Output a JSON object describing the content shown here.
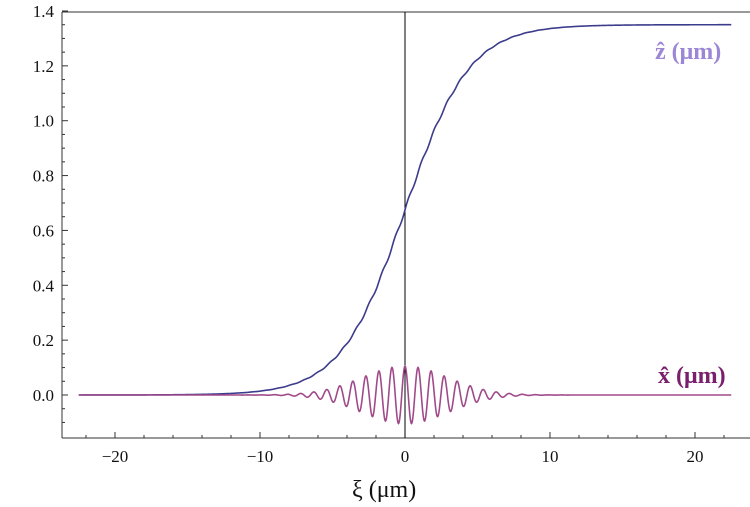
{
  "chart_data": {
    "type": "line",
    "xlabel": "ξ (μm)",
    "ylabel": "",
    "xlim": [
      -22.5,
      22.5
    ],
    "ylim": [
      -0.13,
      1.4
    ],
    "x_ticks": [
      -20,
      -10,
      0,
      10,
      20
    ],
    "x_tick_labels": [
      "−20",
      "−10",
      "0",
      "10",
      "20"
    ],
    "y_ticks": [
      0.0,
      0.2,
      0.4,
      0.6,
      0.8,
      1.0,
      1.2,
      1.4
    ],
    "y_tick_labels": [
      "0.0",
      "0.2",
      "0.4",
      "0.6",
      "0.8",
      "1.0",
      "1.2",
      "1.4"
    ],
    "grid": false,
    "vertical_reference_line_x": 0,
    "series": [
      {
        "name": "ẑ (μm)",
        "color": "#3c3c8c",
        "label_color": "#9b87d6",
        "model": "logistic with small ripple",
        "amplitude": 1.35,
        "center": 0,
        "width": 2.2,
        "ripple_amplitude": 0.006,
        "ripple_period": 0.9
      },
      {
        "name": "x̂ (μm)",
        "color": "#a04a8a",
        "label_color": "#7a1f6e",
        "model": "gaussian-envelope oscillation",
        "amplitude": 0.105,
        "center": 0,
        "envelope_width": 4.2,
        "period": 0.9
      }
    ]
  }
}
